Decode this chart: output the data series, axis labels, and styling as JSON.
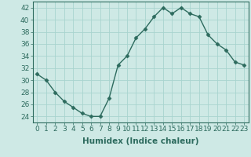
{
  "x": [
    0,
    1,
    2,
    3,
    4,
    5,
    6,
    7,
    8,
    9,
    10,
    11,
    12,
    13,
    14,
    15,
    16,
    17,
    18,
    19,
    20,
    21,
    22,
    23
  ],
  "y": [
    31,
    30,
    28,
    26.5,
    25.5,
    24.5,
    24,
    24,
    27,
    32.5,
    34,
    37,
    38.5,
    40.5,
    42,
    41,
    42,
    41,
    40.5,
    37.5,
    36,
    35,
    33,
    32.5
  ],
  "line_color": "#2d6b5e",
  "marker": "D",
  "marker_size": 2.5,
  "bg_color": "#cee9e5",
  "grid_color": "#a8d4cf",
  "xlabel": "Humidex (Indice chaleur)",
  "ylim": [
    23,
    43
  ],
  "xlim": [
    -0.5,
    23.5
  ],
  "yticks": [
    24,
    26,
    28,
    30,
    32,
    34,
    36,
    38,
    40,
    42
  ],
  "xticks": [
    0,
    1,
    2,
    3,
    4,
    5,
    6,
    7,
    8,
    9,
    10,
    11,
    12,
    13,
    14,
    15,
    16,
    17,
    18,
    19,
    20,
    21,
    22,
    23
  ],
  "tick_color": "#2d6b5e",
  "label_fontsize": 6.5,
  "xlabel_fontsize": 7.5
}
